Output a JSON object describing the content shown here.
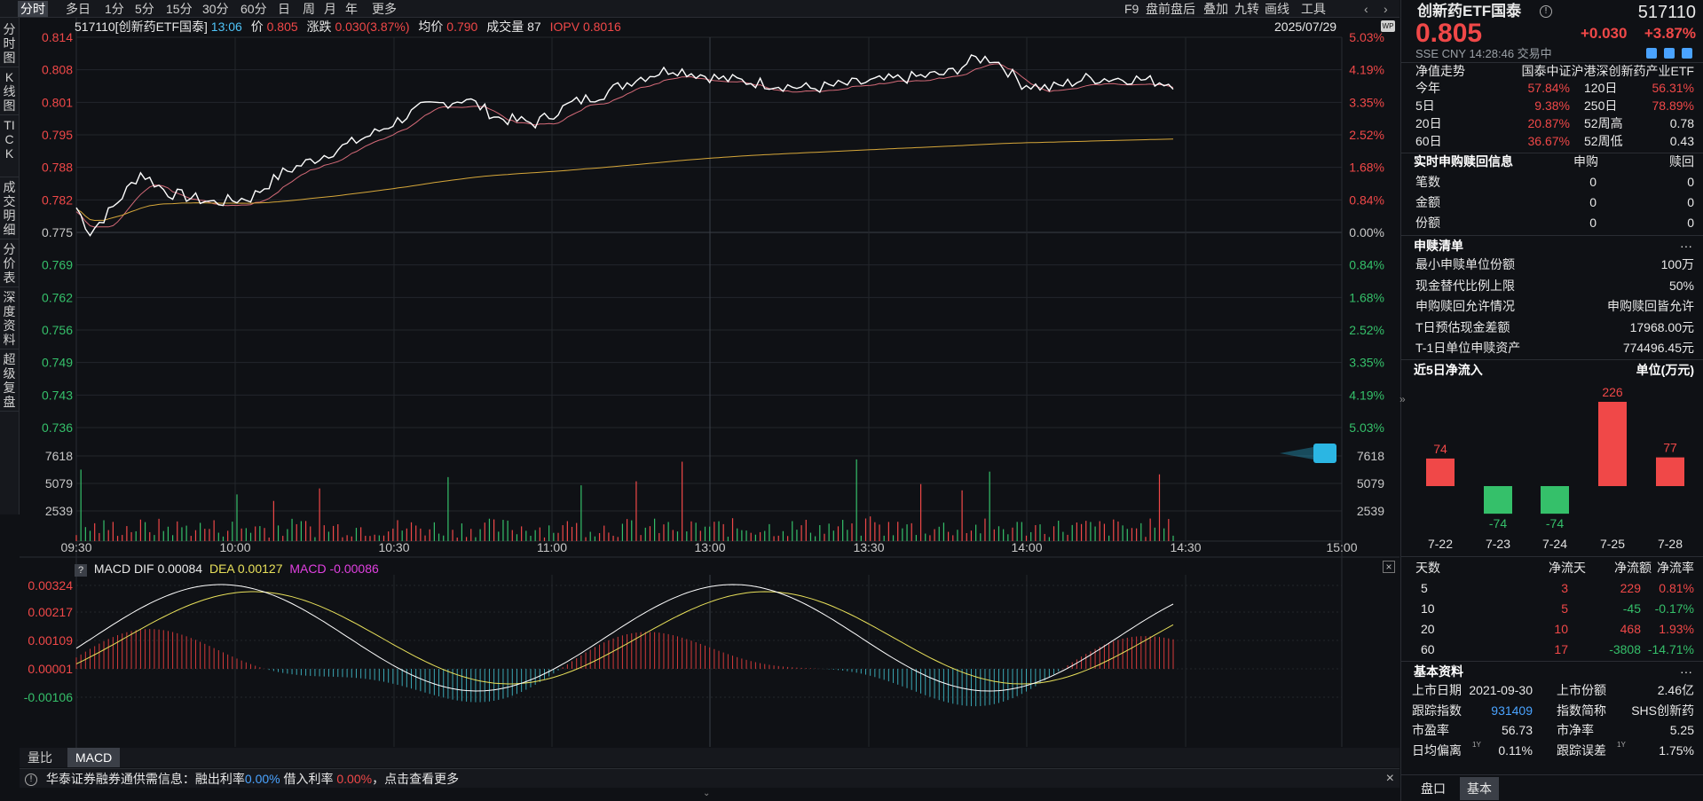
{
  "topbar": {
    "left_tabs": [
      {
        "label": "分时",
        "active": true
      },
      {
        "label": "多日"
      },
      {
        "label": "1分"
      },
      {
        "label": "5分"
      },
      {
        "label": "15分"
      },
      {
        "label": "30分"
      },
      {
        "label": "60分"
      },
      {
        "label": "日"
      },
      {
        "label": "周"
      },
      {
        "label": "月"
      },
      {
        "label": "年"
      },
      {
        "label": "更多"
      }
    ],
    "right_tools": [
      "F9",
      "盘前盘后",
      "叠加",
      "九转",
      "画线",
      "工具"
    ],
    "chevron_left": "‹",
    "chevron_right": "›"
  },
  "sidenav": [
    "分时图",
    "K线图",
    "TICK",
    "成交明细",
    "分价表",
    "深度资料",
    "超级复盘"
  ],
  "infobar": {
    "code_name": "517110[创新药ETF国泰]",
    "time": "13:06",
    "price_label": "价",
    "price": "0.805",
    "change_label": "涨跌",
    "change": "0.030(3.87%)",
    "avg_label": "均价",
    "avg": "0.790",
    "vol_label": "成交量",
    "vol": "87",
    "iopv_label": "IOPV",
    "iopv": "0.8016",
    "date": "2025/07/29",
    "wp_badge": "WP"
  },
  "price_axis": {
    "left": [
      "0.814",
      "0.808",
      "0.801",
      "0.795",
      "0.788",
      "0.782",
      "0.775",
      "0.769",
      "0.762",
      "0.756",
      "0.749",
      "0.743",
      "0.736"
    ],
    "right": [
      "5.03%",
      "4.19%",
      "3.35%",
      "2.52%",
      "1.68%",
      "0.84%",
      "0.00%",
      "0.84%",
      "1.68%",
      "2.52%",
      "3.35%",
      "4.19%",
      "5.03%"
    ]
  },
  "volume_axis": [
    "7618",
    "5079",
    "2539"
  ],
  "time_axis": [
    "09:30",
    "10:00",
    "10:30",
    "11:00",
    "13:00",
    "13:30",
    "14:00",
    "14:30",
    "15:00"
  ],
  "macd_header": {
    "help": "?",
    "title": "MACD",
    "dif_label": "DIF",
    "dif": "0.00084",
    "dea_label": "DEA",
    "dea": "0.00127",
    "macd_label": "MACD",
    "macd": "-0.00086"
  },
  "macd_axis": [
    "0.00324",
    "0.00217",
    "0.00109",
    "0.00001",
    "-0.00106"
  ],
  "bottom_tabs": [
    {
      "label": "量比"
    },
    {
      "label": "MACD",
      "active": true
    }
  ],
  "notice": {
    "prefix": "华泰证券融券通供需信息：融出利率",
    "rate1": "0.00%",
    "mid": "借入利率",
    "rate2": "0.00%",
    "suffix": "，点击查看更多"
  },
  "colors": {
    "up": "#f04848",
    "down": "#35c06a",
    "price_line": "#ffffff",
    "avg_line": "#d6a73a",
    "ma_line": "#d46a78",
    "dea_line": "#e8e05a",
    "dif_line": "#ffffff"
  },
  "right_panel": {
    "name": "创新药ETF国泰",
    "code": "517110",
    "price": "0.805",
    "change": "+0.030",
    "change_pct": "+3.87%",
    "meta": "SSE  CNY  14:28:46  交易中",
    "nav_title": "净值走势",
    "nav_index": "国泰中证沪港深创新药产业ETF",
    "perf": [
      [
        "今年",
        "57.84%",
        "120日",
        "56.31%"
      ],
      [
        "5日",
        "9.38%",
        "250日",
        "78.89%"
      ],
      [
        "20日",
        "20.87%",
        "52周高",
        "0.78"
      ],
      [
        "60日",
        "36.67%",
        "52周低",
        "0.43"
      ]
    ],
    "realtime_title": "实时申购赎回信息",
    "sub_label": "申购",
    "red_label": "赎回",
    "realtime": [
      [
        "笔数",
        "0",
        "0"
      ],
      [
        "金额",
        "0",
        "0"
      ],
      [
        "份额",
        "0",
        "0"
      ]
    ],
    "list_title": "申赎清单",
    "list_more": "···",
    "list": [
      [
        "最小申赎单位份额",
        "100万"
      ],
      [
        "现金替代比例上限",
        "50%"
      ],
      [
        "申购赎回允许情况",
        "申购赎回皆允许"
      ],
      [
        "T日预估现金差额",
        "17968.00元"
      ],
      [
        "T-1日单位申赎资产",
        "774496.45元"
      ]
    ],
    "flow_title": "近5日净流入",
    "flow_unit": "单位(万元)",
    "flow_stats_header": [
      "天数",
      "净流天",
      "净流额",
      "净流率"
    ],
    "flow_stats": [
      [
        "5",
        "3",
        "229",
        "0.81%"
      ],
      [
        "10",
        "5",
        "-45",
        "-0.17%"
      ],
      [
        "20",
        "10",
        "468",
        "1.93%"
      ],
      [
        "60",
        "17",
        "-3808",
        "-14.71%"
      ]
    ],
    "basic_title": "基本资料",
    "basic_more": "···",
    "basic": [
      [
        "上市日期",
        "2021-09-30",
        "上市份额",
        "2.46亿"
      ],
      [
        "跟踪指数",
        "931409",
        "指数简称",
        "SHS创新药"
      ],
      [
        "市盈率",
        "56.73",
        "市净率",
        "5.25"
      ],
      [
        "日均偏离",
        "0.11%",
        "跟踪误差",
        "1.75%"
      ]
    ],
    "basic_sup": "1Y",
    "tabs": [
      "盘口",
      "基本"
    ],
    "collapse": "»"
  },
  "chart_data": {
    "type": "bar",
    "categories": [
      "7-22",
      "7-23",
      "7-24",
      "7-25",
      "7-28"
    ],
    "values": [
      74,
      -74,
      -74,
      226,
      77
    ],
    "ylabel": "单位(万元)"
  }
}
